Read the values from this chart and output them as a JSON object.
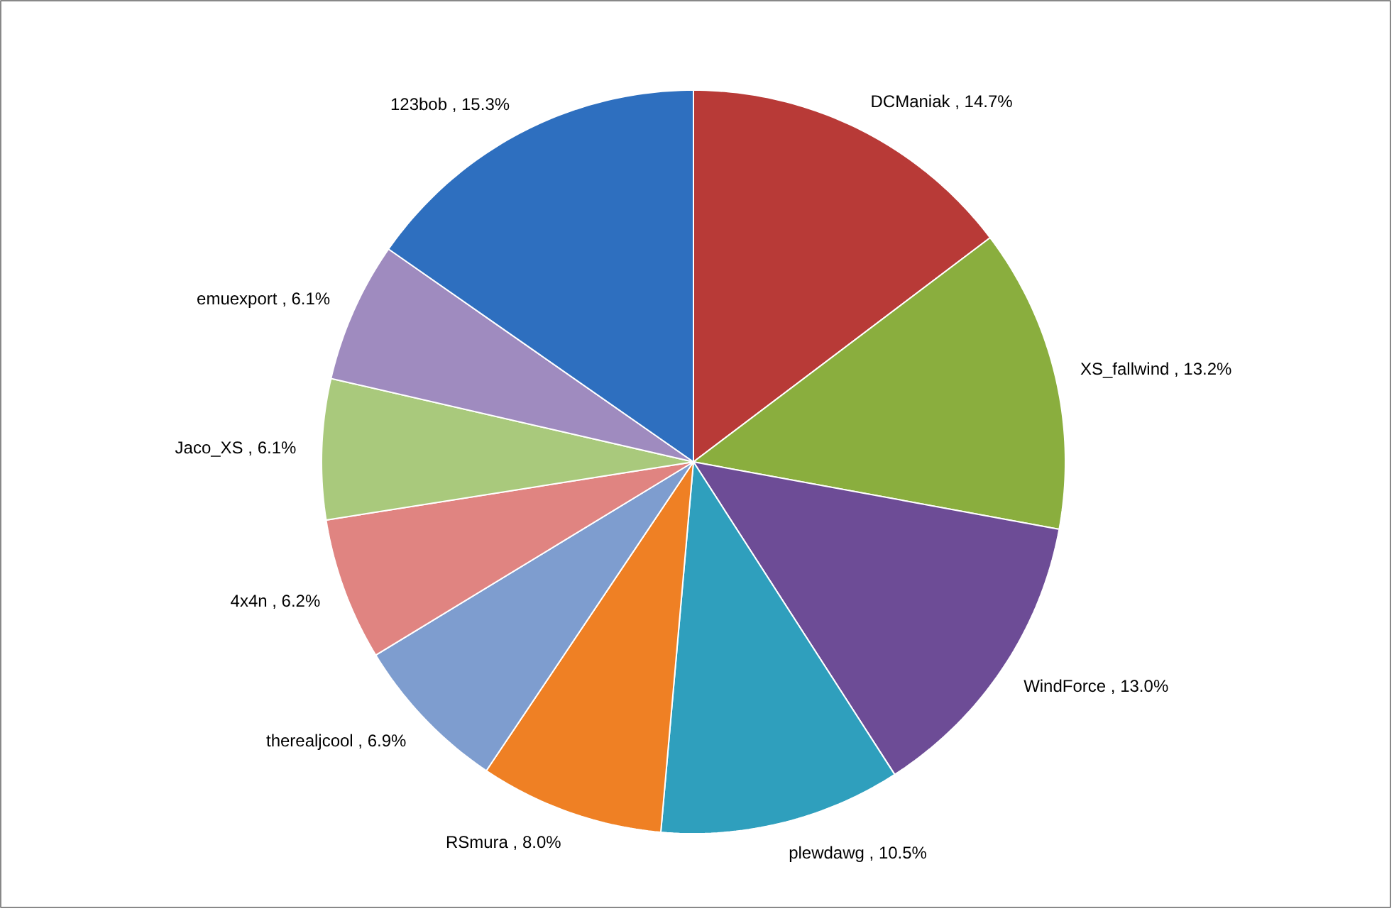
{
  "chart_data": {
    "type": "pie",
    "categories": [
      "DCManiak",
      "XS_fallwind",
      "WindForce",
      "plewdawg",
      "RSmura",
      "therealjcool",
      "4x4n",
      "Jaco_XS",
      "emuexport",
      "123bob"
    ],
    "values": [
      14.7,
      13.2,
      13.0,
      10.5,
      8.0,
      6.9,
      6.2,
      6.1,
      6.1,
      15.3
    ],
    "value_labels": [
      "14.7%",
      "13.2%",
      "13.0%",
      "10.5%",
      "8.0%",
      "6.9%",
      "6.2%",
      "6.1%",
      "6.1%",
      "15.3%"
    ],
    "colors": [
      "#b83a37",
      "#8aae3e",
      "#6d4c96",
      "#2f9fbd",
      "#ef8024",
      "#7e9dcf",
      "#e08481",
      "#a9c97c",
      "#9f8bbf",
      "#2e6fbf"
    ]
  }
}
